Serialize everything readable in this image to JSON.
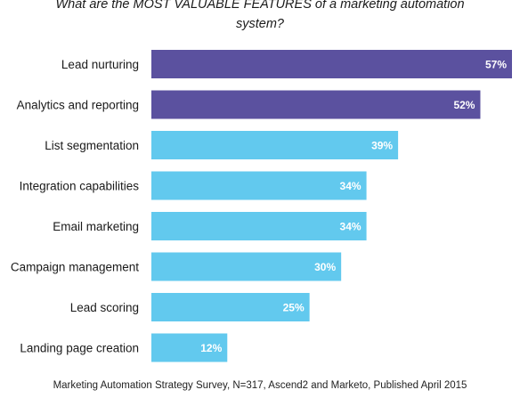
{
  "chart_data": {
    "type": "bar",
    "orientation": "horizontal",
    "title_line1": "What are the MOST VALUABLE FEATURES of a marketing automation",
    "title_line2": "system?",
    "categories": [
      "Lead nurturing",
      "Analytics and reporting",
      "List segmentation",
      "Integration capabilities",
      "Email marketing",
      "Campaign management",
      "Lead scoring",
      "Landing page creation"
    ],
    "values": [
      57,
      52,
      39,
      34,
      34,
      30,
      25,
      12
    ],
    "value_labels": [
      "57%",
      "52%",
      "39%",
      "34%",
      "34%",
      "30%",
      "25%",
      "12%"
    ],
    "value_unit": "%",
    "xlim": [
      0,
      57
    ],
    "grid": false,
    "legend": "none",
    "highlight_count": 2,
    "colors": {
      "highlight": "#5b519f",
      "default": "#62c9ee",
      "label_on_bar": "#ffffff",
      "category_text": "#1a1a1a"
    },
    "source": "Marketing Automation Strategy Survey, N=317, Ascend2 and Marketo, Published April 2015"
  }
}
